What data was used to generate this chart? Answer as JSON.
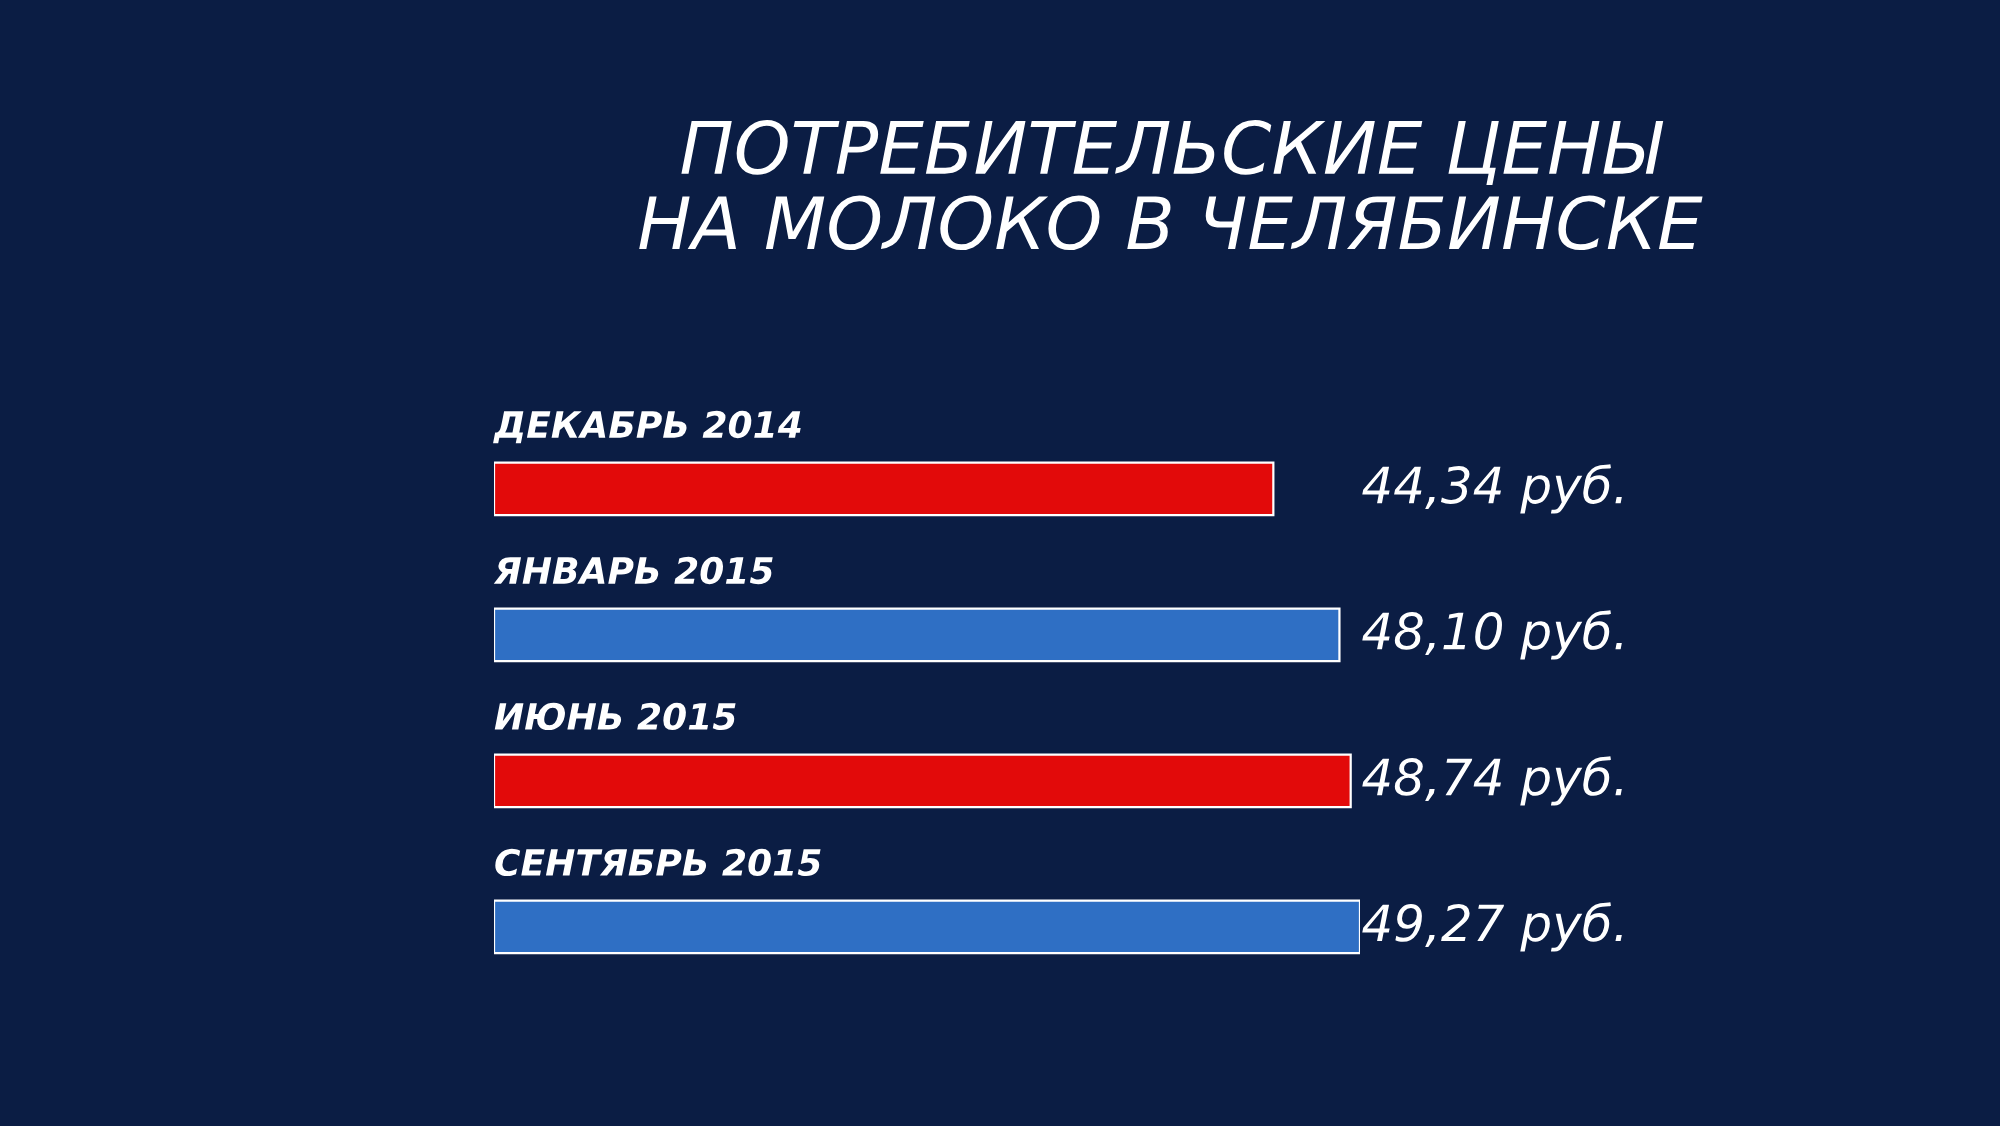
{
  "chart_data": {
    "type": "bar",
    "orientation": "horizontal",
    "title": "ПОТРЕБИТЕЛЬСКИЕ ЦЕНЫ\nНА МОЛОКО В ЧЕЛЯБИНСКЕ",
    "categories": [
      "ДЕКАБРЬ 2014",
      "ЯНВАРЬ 2015",
      "ИЮНЬ 2015",
      "СЕНТЯБРЬ 2015"
    ],
    "values": [
      44.34,
      48.1,
      48.74,
      49.27
    ],
    "value_labels": [
      "44,34 руб.",
      "48,10 руб.",
      "48,74 руб.",
      "49,27 руб."
    ],
    "colors": [
      "#e20a0a",
      "#2f6fc4",
      "#e20a0a",
      "#2f6fc4"
    ]
  }
}
